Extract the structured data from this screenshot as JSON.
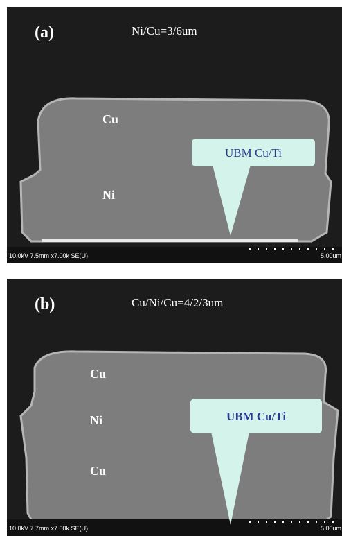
{
  "panels": [
    {
      "label": "(a)",
      "spec": "Ni/Cu=3/6um",
      "layers": [
        "Cu",
        "Ni"
      ],
      "callout": "UBM Cu/Ti",
      "info": "10.0kV 7.5mm x7.00k SE(U)",
      "scale": "5.00um"
    },
    {
      "label": "(b)",
      "spec": "Cu/Ni/Cu=4/2/3um",
      "layers": [
        "Cu",
        "Ni",
        "Cu"
      ],
      "callout": "UBM Cu/Ti",
      "info": "10.0kV 7.7mm x7.00k SE(U)",
      "scale": "5.00um"
    }
  ]
}
